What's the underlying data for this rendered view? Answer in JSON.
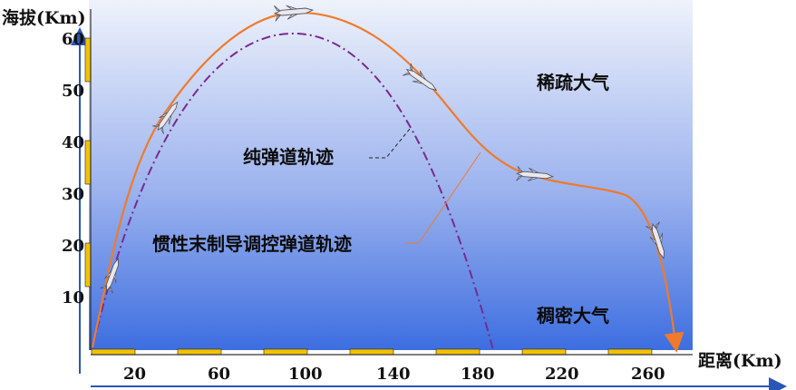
{
  "y_axis": {
    "label": "海拔(Km)",
    "ticks": [
      "60",
      "50",
      "40",
      "30",
      "20",
      "10"
    ]
  },
  "x_axis": {
    "label": "距离(Km)",
    "ticks": [
      "20",
      "60",
      "100",
      "140",
      "180",
      "220",
      "260"
    ]
  },
  "regions": {
    "upper": "稀疏大气",
    "lower": "稠密大气"
  },
  "curves": {
    "ballistic_label": "纯弹道轨迹",
    "guided_label": "惯性末制导调控弹道轨迹"
  },
  "colors": {
    "sky_top": "#eef2fb",
    "sky_bottom": "#3d6ee0",
    "guided_curve": "#f07a2a",
    "ballistic_curve": "#7a2a8f",
    "axis_arrow": "#2a56b8",
    "tick_bar": "#f2c200"
  },
  "icons": [
    "missile-icon"
  ]
}
